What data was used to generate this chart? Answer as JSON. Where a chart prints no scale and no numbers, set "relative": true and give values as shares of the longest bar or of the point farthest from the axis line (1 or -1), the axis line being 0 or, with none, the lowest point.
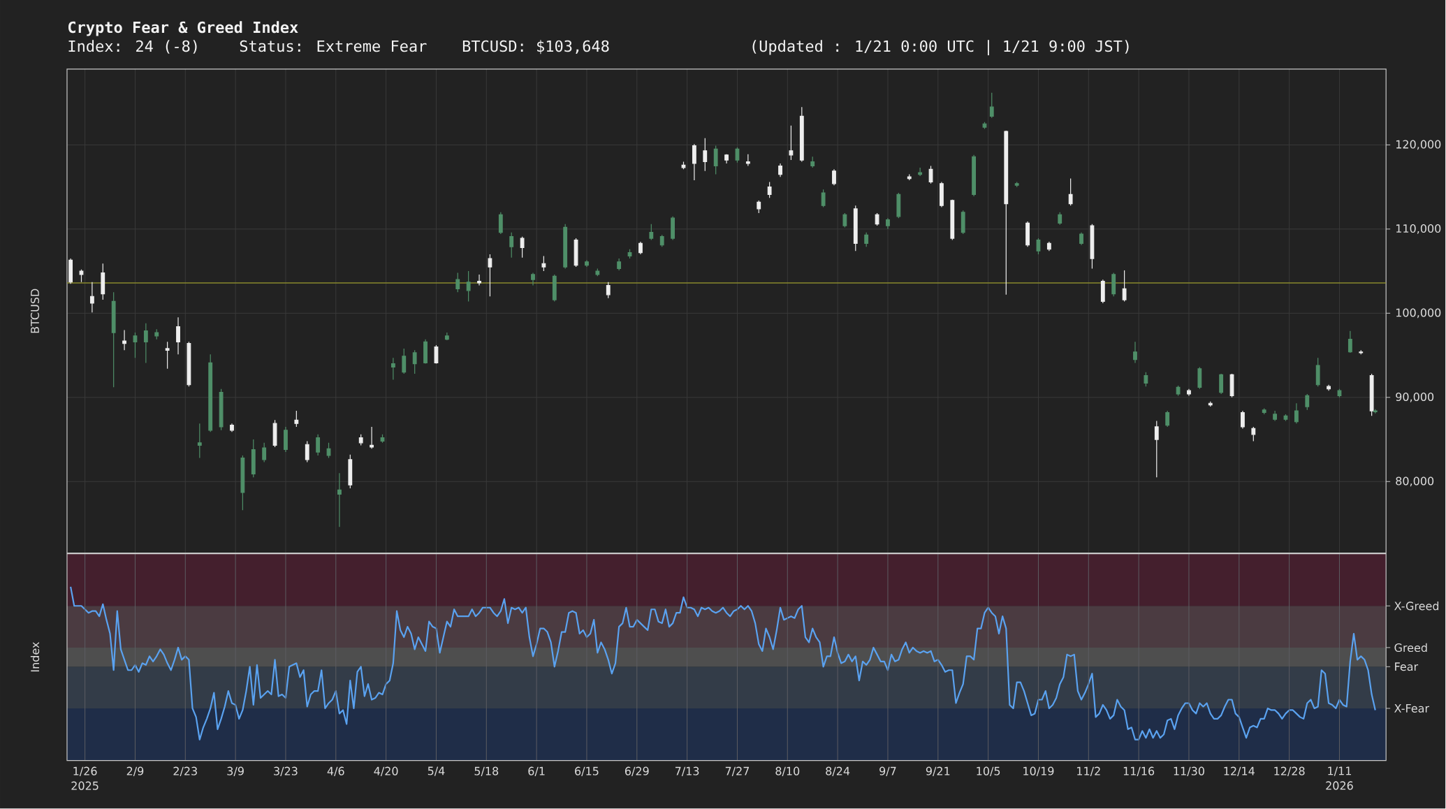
{
  "chart_data": [
    {
      "type": "candlestick",
      "title": "Crypto Fear & Greed Index",
      "subtitle": "Index: 24 (-8)",
      "annotations": [
        "Status: Extreme Fear",
        "BTCUSD: $103,648",
        "(Updated : 1/21 0:00 UTC | 1/21 9:00 JST)"
      ],
      "ylabel": "BTCUSD",
      "x": [
        "2025-01-22",
        "2025-01-25",
        "2025-01-28",
        "2025-01-31",
        "2025-02-03",
        "2025-02-06",
        "2025-02-09",
        "2025-02-12",
        "2025-02-15",
        "2025-02-18",
        "2025-02-21",
        "2025-02-24",
        "2025-02-27",
        "2025-03-02",
        "2025-03-05",
        "2025-03-08",
        "2025-03-11",
        "2025-03-14",
        "2025-03-17",
        "2025-03-20",
        "2025-03-23",
        "2025-03-26",
        "2025-03-29",
        "2025-04-01",
        "2025-04-04",
        "2025-04-07",
        "2025-04-10",
        "2025-04-13",
        "2025-04-16",
        "2025-04-19",
        "2025-04-22",
        "2025-04-25",
        "2025-04-28",
        "2025-05-01",
        "2025-05-04",
        "2025-05-07",
        "2025-05-10",
        "2025-05-13",
        "2025-05-16",
        "2025-05-19",
        "2025-05-22",
        "2025-05-25",
        "2025-05-28",
        "2025-05-31",
        "2025-06-03",
        "2025-06-06",
        "2025-06-09",
        "2025-06-12",
        "2025-06-15",
        "2025-06-18",
        "2025-06-21",
        "2025-06-24",
        "2025-06-27",
        "2025-06-30",
        "2025-07-03",
        "2025-07-06",
        "2025-07-09",
        "2025-07-12",
        "2025-07-15",
        "2025-07-18",
        "2025-07-21",
        "2025-07-24",
        "2025-07-27",
        "2025-07-30",
        "2025-08-02",
        "2025-08-05",
        "2025-08-08",
        "2025-08-11",
        "2025-08-14",
        "2025-08-17",
        "2025-08-20",
        "2025-08-23",
        "2025-08-26",
        "2025-08-29",
        "2025-09-01",
        "2025-09-04",
        "2025-09-07",
        "2025-09-10",
        "2025-09-13",
        "2025-09-16",
        "2025-09-19",
        "2025-09-22",
        "2025-09-25",
        "2025-09-28",
        "2025-10-01",
        "2025-10-04",
        "2025-10-06",
        "2025-10-10",
        "2025-10-13",
        "2025-10-16",
        "2025-10-19",
        "2025-10-22",
        "2025-10-25",
        "2025-10-28",
        "2025-10-31",
        "2025-11-03",
        "2025-11-06",
        "2025-11-09",
        "2025-11-12",
        "2025-11-15",
        "2025-11-18",
        "2025-11-21",
        "2025-11-24",
        "2025-11-27",
        "2025-11-30",
        "2025-12-03",
        "2025-12-06",
        "2025-12-09",
        "2025-12-12",
        "2025-12-15",
        "2025-12-18",
        "2025-12-21",
        "2025-12-24",
        "2025-12-27",
        "2025-12-30",
        "2026-01-02",
        "2026-01-05",
        "2026-01-08",
        "2026-01-11",
        "2026-01-14",
        "2026-01-17",
        "2026-01-20",
        "2026-01-21"
      ],
      "ohlc": [
        [
          106300,
          106500,
          103500,
          103700
        ],
        [
          105000,
          105200,
          103700,
          104600
        ],
        [
          102000,
          103700,
          100100,
          101200
        ],
        [
          104800,
          105900,
          101600,
          102300
        ],
        [
          97700,
          102500,
          91200,
          101400
        ],
        [
          96700,
          98000,
          95600,
          96400
        ],
        [
          96600,
          97700,
          94700,
          97300
        ],
        [
          96600,
          98800,
          94100,
          97900
        ],
        [
          97300,
          98100,
          96900,
          97700
        ],
        [
          95800,
          96600,
          93400,
          95600
        ],
        [
          98400,
          99500,
          95100,
          96600
        ],
        [
          96400,
          96600,
          91300,
          91500
        ],
        [
          84300,
          86900,
          82800,
          84600
        ],
        [
          86100,
          95100,
          85900,
          94100
        ],
        [
          86500,
          91000,
          86100,
          90600
        ],
        [
          86700,
          86900,
          85900,
          86100
        ],
        [
          78700,
          83100,
          76600,
          82800
        ],
        [
          80900,
          85000,
          80500,
          83800
        ],
        [
          82600,
          84600,
          82300,
          84000
        ],
        [
          86900,
          87300,
          84100,
          84300
        ],
        [
          83800,
          86500,
          83500,
          86100
        ],
        [
          87300,
          88400,
          86500,
          86900
        ],
        [
          84400,
          84800,
          82300,
          82600
        ],
        [
          83500,
          85600,
          83100,
          85200
        ],
        [
          83100,
          84600,
          82800,
          83900
        ],
        [
          78500,
          81000,
          74600,
          79000
        ],
        [
          82600,
          83200,
          79200,
          79600
        ],
        [
          85200,
          85600,
          84300,
          84600
        ],
        [
          84300,
          86500,
          83900,
          84100
        ],
        [
          84800,
          85600,
          84600,
          85200
        ],
        [
          93600,
          94700,
          92100,
          94000
        ],
        [
          93000,
          95800,
          92800,
          94900
        ],
        [
          94000,
          95600,
          92800,
          95300
        ],
        [
          94100,
          96900,
          94000,
          96600
        ],
        [
          96000,
          96200,
          94000,
          94100
        ],
        [
          96900,
          97700,
          96800,
          97300
        ],
        [
          102900,
          104800,
          102500,
          104000
        ],
        [
          102700,
          105000,
          101400,
          103700
        ],
        [
          103800,
          104600,
          103300,
          103600
        ],
        [
          106500,
          107000,
          102000,
          105500
        ],
        [
          109600,
          112000,
          109400,
          111700
        ],
        [
          107900,
          109600,
          106600,
          109100
        ],
        [
          108900,
          109100,
          106600,
          107800
        ],
        [
          104000,
          104800,
          103300,
          104600
        ],
        [
          105900,
          106800,
          105000,
          105500
        ],
        [
          101600,
          104600,
          101400,
          104400
        ],
        [
          105500,
          110600,
          105300,
          110200
        ],
        [
          108700,
          108900,
          105500,
          105700
        ],
        [
          105700,
          106300,
          105500,
          106100
        ],
        [
          104600,
          105300,
          104400,
          105000
        ],
        [
          103300,
          103700,
          101800,
          102200
        ],
        [
          105300,
          106500,
          105100,
          106100
        ],
        [
          106800,
          107600,
          106500,
          107200
        ],
        [
          108300,
          108500,
          107000,
          107200
        ],
        [
          108900,
          110600,
          108700,
          109600
        ],
        [
          108100,
          109300,
          107900,
          109100
        ],
        [
          108900,
          111500,
          108700,
          111300
        ],
        [
          117600,
          118000,
          117100,
          117300
        ],
        [
          119900,
          120100,
          115800,
          117800
        ],
        [
          119300,
          120800,
          116900,
          118000
        ],
        [
          117500,
          119900,
          116500,
          119500
        ],
        [
          118800,
          118900,
          117800,
          118200
        ],
        [
          118200,
          119700,
          117900,
          119500
        ],
        [
          118000,
          118900,
          117500,
          117800
        ],
        [
          113200,
          113400,
          111900,
          112400
        ],
        [
          115000,
          115600,
          113700,
          114100
        ],
        [
          117500,
          117800,
          116200,
          116500
        ],
        [
          119300,
          122300,
          118200,
          118800
        ],
        [
          123400,
          124500,
          118000,
          118200
        ],
        [
          117500,
          118600,
          117300,
          118000
        ],
        [
          112800,
          114700,
          112600,
          114300
        ],
        [
          116900,
          117100,
          115200,
          115400
        ],
        [
          110400,
          111900,
          110200,
          111700
        ],
        [
          112400,
          112800,
          107400,
          108300
        ],
        [
          108300,
          109600,
          107900,
          109300
        ],
        [
          111700,
          111900,
          110400,
          110600
        ],
        [
          110400,
          111300,
          110000,
          111100
        ],
        [
          111500,
          114300,
          111300,
          114100
        ],
        [
          116200,
          116500,
          115800,
          116000
        ],
        [
          116500,
          117300,
          116300,
          116700
        ],
        [
          117100,
          117500,
          115400,
          115600
        ],
        [
          115400,
          115600,
          112600,
          112800
        ],
        [
          113400,
          113500,
          108700,
          108900
        ],
        [
          109600,
          112200,
          109400,
          112000
        ],
        [
          114100,
          118800,
          113900,
          118600
        ],
        [
          122100,
          122700,
          121900,
          122500
        ],
        [
          123400,
          126200,
          123200,
          124500
        ],
        [
          121600,
          121700,
          102200,
          113000
        ],
        [
          115200,
          115600,
          115000,
          115400
        ],
        [
          110700,
          110900,
          107900,
          108100
        ],
        [
          107400,
          108900,
          107000,
          108700
        ],
        [
          108300,
          108500,
          107400,
          107600
        ],
        [
          110700,
          112000,
          110500,
          111700
        ],
        [
          114100,
          116000,
          112800,
          113000
        ],
        [
          108300,
          109600,
          108100,
          109400
        ],
        [
          110400,
          110600,
          105300,
          106500
        ],
        [
          103800,
          104000,
          101200,
          101400
        ],
        [
          102300,
          104800,
          102000,
          104600
        ],
        [
          102900,
          105100,
          101400,
          101600
        ],
        [
          94500,
          96600,
          94100,
          95400
        ],
        [
          91700,
          93000,
          91300,
          92600
        ],
        [
          86500,
          87200,
          80500,
          85000
        ],
        [
          86700,
          88400,
          86500,
          88200
        ],
        [
          90400,
          91400,
          90200,
          91200
        ],
        [
          90800,
          91000,
          90200,
          90400
        ],
        [
          91200,
          93600,
          91000,
          93400
        ],
        [
          89300,
          89500,
          88900,
          89100
        ],
        [
          90600,
          92800,
          90400,
          92700
        ],
        [
          92700,
          92800,
          90000,
          90200
        ],
        [
          88200,
          88400,
          86300,
          86500
        ],
        [
          86300,
          86500,
          84800,
          85600
        ],
        [
          88200,
          88700,
          88000,
          88500
        ],
        [
          87400,
          88400,
          87200,
          88000
        ],
        [
          87400,
          88000,
          87200,
          87800
        ],
        [
          87100,
          89300,
          86900,
          88400
        ],
        [
          88900,
          90400,
          88500,
          90200
        ],
        [
          91500,
          94700,
          91300,
          93800
        ],
        [
          91300,
          91500,
          90800,
          91000
        ],
        [
          90200,
          91000,
          90000,
          90800
        ],
        [
          95400,
          97900,
          95300,
          96900
        ],
        [
          95400,
          95600,
          95100,
          95300
        ],
        [
          92600,
          92800,
          87800,
          88400
        ],
        [
          88300,
          88600,
          88100,
          88400
        ]
      ],
      "colors": [
        "#eeeeee",
        "#eeeeee",
        "#eeeeee",
        "#eeeeee",
        "#4f8f68",
        "#eeeeee",
        "#4f8f68",
        "#4f8f68",
        "#4f8f68",
        "#eeeeee",
        "#eeeeee",
        "#eeeeee",
        "#4f8f68",
        "#4f8f68",
        "#4f8f68",
        "#eeeeee",
        "#4f8f68",
        "#4f8f68",
        "#4f8f68",
        "#eeeeee",
        "#4f8f68",
        "#eeeeee",
        "#eeeeee",
        "#4f8f68",
        "#4f8f68",
        "#4f8f68",
        "#eeeeee",
        "#eeeeee",
        "#eeeeee",
        "#4f8f68",
        "#4f8f68",
        "#4f8f68",
        "#4f8f68",
        "#4f8f68",
        "#eeeeee",
        "#4f8f68",
        "#4f8f68",
        "#4f8f68",
        "#eeeeee",
        "#eeeeee",
        "#4f8f68",
        "#4f8f68",
        "#eeeeee",
        "#4f8f68",
        "#eeeeee",
        "#4f8f68",
        "#4f8f68",
        "#eeeeee",
        "#4f8f68",
        "#4f8f68",
        "#eeeeee",
        "#4f8f68",
        "#4f8f68",
        "#eeeeee",
        "#4f8f68",
        "#4f8f68",
        "#4f8f68",
        "#eeeeee",
        "#eeeeee",
        "#eeeeee",
        "#4f8f68",
        "#eeeeee",
        "#4f8f68",
        "#eeeeee",
        "#eeeeee",
        "#eeeeee",
        "#eeeeee",
        "#eeeeee",
        "#eeeeee",
        "#4f8f68",
        "#4f8f68",
        "#eeeeee",
        "#4f8f68",
        "#eeeeee",
        "#4f8f68",
        "#eeeeee",
        "#4f8f68",
        "#4f8f68",
        "#eeeeee",
        "#4f8f68",
        "#eeeeee",
        "#eeeeee",
        "#eeeeee",
        "#4f8f68",
        "#4f8f68",
        "#4f8f68",
        "#4f8f68",
        "#eeeeee",
        "#4f8f68",
        "#eeeeee",
        "#4f8f68",
        "#eeeeee",
        "#4f8f68",
        "#eeeeee",
        "#4f8f68",
        "#eeeeee",
        "#eeeeee",
        "#4f8f68",
        "#eeeeee",
        "#4f8f68",
        "#4f8f68",
        "#eeeeee",
        "#4f8f68",
        "#4f8f68",
        "#eeeeee",
        "#4f8f68",
        "#eeeeee",
        "#4f8f68",
        "#eeeeee",
        "#eeeeee",
        "#eeeeee",
        "#4f8f68",
        "#4f8f68",
        "#4f8f68",
        "#4f8f68",
        "#4f8f68",
        "#4f8f68",
        "#eeeeee",
        "#4f8f68",
        "#4f8f68",
        "#eeeeee",
        "#eeeeee",
        "#4f8f68"
      ],
      "xlim": [
        "2025-01-21",
        "2026-01-24"
      ],
      "xticks": [
        {
          "value": "2025-01-26",
          "label": null
        },
        {
          "value": "2025-02-09",
          "label": null
        },
        {
          "value": "2025-02-23",
          "label": null
        },
        {
          "value": "2025-03-09",
          "label": null
        },
        {
          "value": "2025-03-23",
          "label": null
        },
        {
          "value": "2025-04-06",
          "label": null
        },
        {
          "value": "2025-04-20",
          "label": null
        },
        {
          "value": "2025-05-04",
          "label": null
        },
        {
          "value": "2025-05-18",
          "label": null
        },
        {
          "value": "2025-06-01",
          "label": null
        },
        {
          "value": "2025-06-15",
          "label": null
        },
        {
          "value": "2025-06-29",
          "label": null
        },
        {
          "value": "2025-07-13",
          "label": null
        },
        {
          "value": "2025-07-27",
          "label": null
        },
        {
          "value": "2025-08-10",
          "label": null
        },
        {
          "value": "2025-08-24",
          "label": null
        },
        {
          "value": "2025-09-07",
          "label": null
        },
        {
          "value": "2025-09-21",
          "label": null
        },
        {
          "value": "2025-10-05",
          "label": null
        },
        {
          "value": "2025-10-19",
          "label": null
        },
        {
          "value": "2025-11-02",
          "label": null
        },
        {
          "value": "2025-11-16",
          "label": null
        },
        {
          "value": "2025-11-30",
          "label": null
        },
        {
          "value": "2025-12-14",
          "label": null
        },
        {
          "value": "2025-12-28",
          "label": null
        },
        {
          "value": "2026-01-11",
          "label": null
        }
      ],
      "ylim": [
        71500,
        129000
      ],
      "yticks": [
        {
          "value": 80000,
          "label": "80,000"
        },
        {
          "value": 90000,
          "label": "90,000"
        },
        {
          "value": 100000,
          "label": "100,000"
        },
        {
          "value": 110000,
          "label": "110,000"
        },
        {
          "value": 120000,
          "label": "120,000"
        }
      ],
      "grid": true,
      "tick_labels": "y",
      "ref_lines": [
        {
          "axis": "y",
          "value": 103600,
          "color": "#8a8a2c"
        }
      ]
    },
    {
      "type": "line",
      "ylabel": "Index",
      "color": "#5aa2f0",
      "relative": true,
      "x": [
        "2025-01-22",
        "2025-01-23",
        "2025-01-24",
        "2025-01-25",
        "2025-01-26",
        "2025-01-27",
        "2025-01-28",
        "2025-01-29",
        "2025-01-30",
        "2025-01-31",
        "2025-02-01",
        "2025-02-02",
        "2025-02-03",
        "2025-02-04",
        "2025-02-05",
        "2025-02-06",
        "2025-02-07",
        "2025-02-08",
        "2025-02-09",
        "2025-02-10",
        "2025-02-11",
        "2025-02-12",
        "2025-02-13",
        "2025-02-14",
        "2025-02-15",
        "2025-02-16",
        "2025-02-17",
        "2025-02-18",
        "2025-02-19",
        "2025-02-20",
        "2025-02-21",
        "2025-02-22",
        "2025-02-23",
        "2025-02-24",
        "2025-02-25",
        "2025-02-26",
        "2025-02-27",
        "2025-02-28",
        "2025-03-01",
        "2025-03-02",
        "2025-03-03",
        "2025-03-04",
        "2025-03-05",
        "2025-03-06",
        "2025-03-07",
        "2025-03-08",
        "2025-03-09",
        "2025-03-10",
        "2025-03-11",
        "2025-03-12",
        "2025-03-13",
        "2025-03-14",
        "2025-03-15",
        "2025-03-16",
        "2025-03-17",
        "2025-03-18",
        "2025-03-19",
        "2025-03-20",
        "2025-03-21",
        "2025-03-22",
        "2025-03-23",
        "2025-03-24",
        "2025-03-25",
        "2025-03-26",
        "2025-03-27",
        "2025-03-28",
        "2025-03-29",
        "2025-03-30",
        "2025-03-31",
        "2025-04-01",
        "2025-04-02",
        "2025-04-03",
        "2025-04-04",
        "2025-04-05",
        "2025-04-06",
        "2025-04-07",
        "2025-04-08",
        "2025-04-09",
        "2025-04-10",
        "2025-04-11",
        "2025-04-12",
        "2025-04-13",
        "2025-04-14",
        "2025-04-15",
        "2025-04-16",
        "2025-04-17",
        "2025-04-18",
        "2025-04-19",
        "2025-04-20",
        "2025-04-21",
        "2025-04-22",
        "2025-04-23",
        "2025-04-24",
        "2025-04-25",
        "2025-04-26",
        "2025-04-27",
        "2025-04-28",
        "2025-04-29",
        "2025-04-30",
        "2025-05-01",
        "2025-05-02",
        "2025-05-03",
        "2025-05-04",
        "2025-05-05",
        "2025-05-06",
        "2025-05-07",
        "2025-05-08",
        "2025-05-09",
        "2025-05-10",
        "2025-05-11",
        "2025-05-12",
        "2025-05-13",
        "2025-05-14",
        "2025-05-15",
        "2025-05-16",
        "2025-05-17",
        "2025-05-18",
        "2025-05-19",
        "2025-05-20",
        "2025-05-21",
        "2025-05-22",
        "2025-05-23",
        "2025-05-24",
        "2025-05-25",
        "2025-05-26",
        "2025-05-27",
        "2025-05-28",
        "2025-05-29",
        "2025-05-30",
        "2025-05-31",
        "2025-06-01",
        "2025-06-02",
        "2025-06-03",
        "2025-06-04",
        "2025-06-05",
        "2025-06-06",
        "2025-06-07",
        "2025-06-08",
        "2025-06-09",
        "2025-06-10",
        "2025-06-11",
        "2025-06-12",
        "2025-06-13",
        "2025-06-14",
        "2025-06-15",
        "2025-06-16",
        "2025-06-17",
        "2025-06-18",
        "2025-06-19",
        "2025-06-20",
        "2025-06-21",
        "2025-06-22",
        "2025-06-23",
        "2025-06-24",
        "2025-06-25",
        "2025-06-26",
        "2025-06-27",
        "2025-06-28",
        "2025-06-29",
        "2025-06-30",
        "2025-07-01",
        "2025-07-02",
        "2025-07-03",
        "2025-07-04",
        "2025-07-05",
        "2025-07-06",
        "2025-07-07",
        "2025-07-08",
        "2025-07-09",
        "2025-07-10",
        "2025-07-11",
        "2025-07-12",
        "2025-07-13",
        "2025-07-14",
        "2025-07-15",
        "2025-07-16",
        "2025-07-17",
        "2025-07-18",
        "2025-07-19",
        "2025-07-20",
        "2025-07-21",
        "2025-07-22",
        "2025-07-23",
        "2025-07-24",
        "2025-07-25",
        "2025-07-26",
        "2025-07-27",
        "2025-07-28",
        "2025-07-29",
        "2025-07-30",
        "2025-07-31",
        "2025-08-01",
        "2025-08-02",
        "2025-08-03",
        "2025-08-04",
        "2025-08-05",
        "2025-08-06",
        "2025-08-07",
        "2025-08-08",
        "2025-08-09",
        "2025-08-10",
        "2025-08-11",
        "2025-08-12",
        "2025-08-13",
        "2025-08-14",
        "2025-08-15",
        "2025-08-16",
        "2025-08-17",
        "2025-08-18",
        "2025-08-19",
        "2025-08-20",
        "2025-08-21",
        "2025-08-22",
        "2025-08-23",
        "2025-08-24",
        "2025-08-25",
        "2025-08-26",
        "2025-08-27",
        "2025-08-28",
        "2025-08-29",
        "2025-08-30",
        "2025-08-31",
        "2025-09-01",
        "2025-09-02",
        "2025-09-03",
        "2025-09-04",
        "2025-09-05",
        "2025-09-06",
        "2025-09-07",
        "2025-09-08",
        "2025-09-09",
        "2025-09-10",
        "2025-09-11",
        "2025-09-12",
        "2025-09-13",
        "2025-09-14",
        "2025-09-15",
        "2025-09-16",
        "2025-09-17",
        "2025-09-18",
        "2025-09-19",
        "2025-09-20",
        "2025-09-21",
        "2025-09-22",
        "2025-09-23",
        "2025-09-24",
        "2025-09-25",
        "2025-09-26",
        "2025-09-27",
        "2025-09-28",
        "2025-09-29",
        "2025-09-30",
        "2025-10-01",
        "2025-10-02",
        "2025-10-03",
        "2025-10-04",
        "2025-10-05",
        "2025-10-06",
        "2025-10-07",
        "2025-10-08",
        "2025-10-09",
        "2025-10-10",
        "2025-10-11",
        "2025-10-12",
        "2025-10-13",
        "2025-10-14",
        "2025-10-15",
        "2025-10-16",
        "2025-10-17",
        "2025-10-18",
        "2025-10-19",
        "2025-10-20",
        "2025-10-21",
        "2025-10-22",
        "2025-10-23",
        "2025-10-24",
        "2025-10-25",
        "2025-10-26",
        "2025-10-27",
        "2025-10-28",
        "2025-10-29",
        "2025-10-30",
        "2025-10-31",
        "2025-11-01",
        "2025-11-02",
        "2025-11-03",
        "2025-11-04",
        "2025-11-05",
        "2025-11-06",
        "2025-11-07",
        "2025-11-08",
        "2025-11-09",
        "2025-11-10",
        "2025-11-11",
        "2025-11-12",
        "2025-11-13",
        "2025-11-14",
        "2025-11-15",
        "2025-11-16",
        "2025-11-17",
        "2025-11-18",
        "2025-11-19",
        "2025-11-20",
        "2025-11-21",
        "2025-11-22",
        "2025-11-23",
        "2025-11-24",
        "2025-11-25",
        "2025-11-26",
        "2025-11-27",
        "2025-11-28",
        "2025-11-29",
        "2025-11-30",
        "2025-12-01",
        "2025-12-02",
        "2025-12-03",
        "2025-12-04",
        "2025-12-05",
        "2025-12-06",
        "2025-12-07",
        "2025-12-08",
        "2025-12-09",
        "2025-12-10",
        "2025-12-11",
        "2025-12-12",
        "2025-12-13",
        "2025-12-14",
        "2025-12-15",
        "2025-12-16",
        "2025-12-17",
        "2025-12-18",
        "2025-12-19",
        "2025-12-20",
        "2025-12-21",
        "2025-12-22",
        "2025-12-23",
        "2025-12-24",
        "2025-12-25",
        "2025-12-26",
        "2025-12-27",
        "2025-12-28",
        "2025-12-29",
        "2025-12-30",
        "2025-12-31",
        "2026-01-01",
        "2026-01-02",
        "2026-01-03",
        "2026-01-04",
        "2026-01-05",
        "2026-01-06",
        "2026-01-07",
        "2026-01-08",
        "2026-01-09",
        "2026-01-10",
        "2026-01-11",
        "2026-01-12",
        "2026-01-13",
        "2026-01-14",
        "2026-01-15",
        "2026-01-16",
        "2026-01-17",
        "2026-01-18",
        "2026-01-19",
        "2026-01-20",
        "2026-01-21"
      ],
      "values": [
        1,
        0.89,
        0.89,
        0.89,
        0.87,
        0.85,
        0.86,
        0.86,
        0.83,
        0.9,
        0.81,
        0.73,
        0.52,
        0.86,
        0.64,
        0.58,
        0.52,
        0.52,
        0.55,
        0.51,
        0.56,
        0.55,
        0.6,
        0.57,
        0.6,
        0.64,
        0.61,
        0.56,
        0.52,
        0.58,
        0.65,
        0.58,
        0.6,
        0.58,
        0.3,
        0.25,
        0.12,
        0.19,
        0.24,
        0.3,
        0.39,
        0.18,
        0.24,
        0.31,
        0.4,
        0.33,
        0.32,
        0.24,
        0.29,
        0.4,
        0.54,
        0.32,
        0.55,
        0.36,
        0.38,
        0.4,
        0.38,
        0.58,
        0.37,
        0.38,
        0.36,
        0.54,
        0.55,
        0.56,
        0.48,
        0.52,
        0.31,
        0.38,
        0.4,
        0.4,
        0.52,
        0.3,
        0.33,
        0.35,
        0.4,
        0.27,
        0.29,
        0.21,
        0.46,
        0.3,
        0.51,
        0.54,
        0.37,
        0.44,
        0.35,
        0.36,
        0.39,
        0.38,
        0.44,
        0.46,
        0.56,
        0.86,
        0.75,
        0.71,
        0.77,
        0.73,
        0.64,
        0.71,
        0.67,
        0.63,
        0.8,
        0.77,
        0.76,
        0.62,
        0.71,
        0.8,
        0.77,
        0.87,
        0.83,
        0.83,
        0.83,
        0.83,
        0.87,
        0.83,
        0.85,
        0.88,
        0.88,
        0.88,
        0.85,
        0.83,
        0.86,
        0.93,
        0.79,
        0.88,
        0.87,
        0.88,
        0.85,
        0.88,
        0.71,
        0.6,
        0.67,
        0.76,
        0.76,
        0.74,
        0.68,
        0.54,
        0.63,
        0.74,
        0.74,
        0.85,
        0.86,
        0.85,
        0.73,
        0.75,
        0.71,
        0.73,
        0.81,
        0.62,
        0.68,
        0.64,
        0.58,
        0.5,
        0.56,
        0.77,
        0.79,
        0.88,
        0.77,
        0.77,
        0.81,
        0.79,
        0.77,
        0.75,
        0.87,
        0.87,
        0.8,
        0.79,
        0.87,
        0.77,
        0.79,
        0.85,
        0.85,
        0.94,
        0.88,
        0.88,
        0.87,
        0.83,
        0.88,
        0.87,
        0.88,
        0.86,
        0.85,
        0.86,
        0.88,
        0.85,
        0.83,
        0.86,
        0.87,
        0.89,
        0.87,
        0.89,
        0.86,
        0.79,
        0.67,
        0.63,
        0.76,
        0.71,
        0.64,
        0.75,
        0.88,
        0.81,
        0.82,
        0.83,
        0.82,
        0.87,
        0.89,
        0.71,
        0.68,
        0.76,
        0.71,
        0.68,
        0.54,
        0.6,
        0.6,
        0.71,
        0.62,
        0.56,
        0.57,
        0.61,
        0.57,
        0.6,
        0.46,
        0.57,
        0.55,
        0.58,
        0.65,
        0.61,
        0.57,
        0.57,
        0.52,
        0.61,
        0.57,
        0.58,
        0.64,
        0.68,
        0.62,
        0.65,
        0.63,
        0.62,
        0.63,
        0.62,
        0.63,
        0.57,
        0.58,
        0.55,
        0.51,
        0.52,
        0.52,
        0.33,
        0.39,
        0.44,
        0.6,
        0.6,
        0.58,
        0.76,
        0.76,
        0.85,
        0.88,
        0.85,
        0.83,
        0.73,
        0.83,
        0.76,
        0.32,
        0.3,
        0.45,
        0.45,
        0.4,
        0.33,
        0.26,
        0.27,
        0.35,
        0.35,
        0.4,
        0.3,
        0.32,
        0.36,
        0.44,
        0.48,
        0.61,
        0.6,
        0.61,
        0.4,
        0.35,
        0.39,
        0.44,
        0.5,
        0.25,
        0.27,
        0.32,
        0.29,
        0.24,
        0.26,
        0.35,
        0.31,
        0.29,
        0.18,
        0.19,
        0.12,
        0.12,
        0.17,
        0.13,
        0.18,
        0.13,
        0.17,
        0.13,
        0.15,
        0.23,
        0.24,
        0.18,
        0.26,
        0.3,
        0.33,
        0.33,
        0.29,
        0.27,
        0.33,
        0.31,
        0.33,
        0.27,
        0.24,
        0.24,
        0.26,
        0.31,
        0.35,
        0.35,
        0.27,
        0.25,
        0.19,
        0.13,
        0.19,
        0.2,
        0.19,
        0.24,
        0.24,
        0.3,
        0.29,
        0.29,
        0.27,
        0.24,
        0.27,
        0.29,
        0.29,
        0.27,
        0.25,
        0.24,
        0.33,
        0.35,
        0.3,
        0.31,
        0.52,
        0.5,
        0.33,
        0.32,
        0.3,
        0.35,
        0.32,
        0.31,
        0.57,
        0.73,
        0.58,
        0.6,
        0.58,
        0.52,
        0.38,
        0.29
      ],
      "xlim": [
        "2025-01-21",
        "2026-01-24"
      ],
      "xticks": [
        {
          "value": "2025-01-26",
          "label": "1/26\n2025"
        },
        {
          "value": "2025-02-09",
          "label": "2/9"
        },
        {
          "value": "2025-02-23",
          "label": "2/23"
        },
        {
          "value": "2025-03-09",
          "label": "3/9"
        },
        {
          "value": "2025-03-23",
          "label": "3/23"
        },
        {
          "value": "2025-04-06",
          "label": "4/6"
        },
        {
          "value": "2025-04-20",
          "label": "4/20"
        },
        {
          "value": "2025-05-04",
          "label": "5/4"
        },
        {
          "value": "2025-05-18",
          "label": "5/18"
        },
        {
          "value": "2025-06-01",
          "label": "6/1"
        },
        {
          "value": "2025-06-15",
          "label": "6/15"
        },
        {
          "value": "2025-06-29",
          "label": "6/29"
        },
        {
          "value": "2025-07-13",
          "label": "7/13"
        },
        {
          "value": "2025-07-27",
          "label": "7/27"
        },
        {
          "value": "2025-08-10",
          "label": "8/10"
        },
        {
          "value": "2025-08-24",
          "label": "8/24"
        },
        {
          "value": "2025-09-07",
          "label": "9/7"
        },
        {
          "value": "2025-09-21",
          "label": "9/21"
        },
        {
          "value": "2025-10-05",
          "label": "10/5"
        },
        {
          "value": "2025-10-19",
          "label": "10/19"
        },
        {
          "value": "2025-11-02",
          "label": "11/2"
        },
        {
          "value": "2025-11-16",
          "label": "11/16"
        },
        {
          "value": "2025-11-30",
          "label": "11/30"
        },
        {
          "value": "2025-12-14",
          "label": "12/14"
        },
        {
          "value": "2025-12-28",
          "label": "12/28"
        },
        {
          "value": "2026-01-11",
          "label": "1/11\n2026"
        }
      ],
      "bands": [
        {
          "axis": "y",
          "from": 0,
          "to": 0.3,
          "color": "#1f2d48",
          "label": "X-Fear"
        },
        {
          "axis": "y",
          "from": 0.3,
          "to": 0.54,
          "color": "#333c48",
          "label": "Fear"
        },
        {
          "axis": "y",
          "from": 0.54,
          "to": 0.65,
          "color": "#4e4e4e",
          "label": "Greed"
        },
        {
          "axis": "y",
          "from": 0.65,
          "to": 0.89,
          "color": "#4b3b41",
          "label": "X-Greed"
        },
        {
          "axis": "y",
          "from": 0.89,
          "to": 1.19,
          "color": "#441f2d"
        }
      ],
      "grid": "x"
    }
  ]
}
